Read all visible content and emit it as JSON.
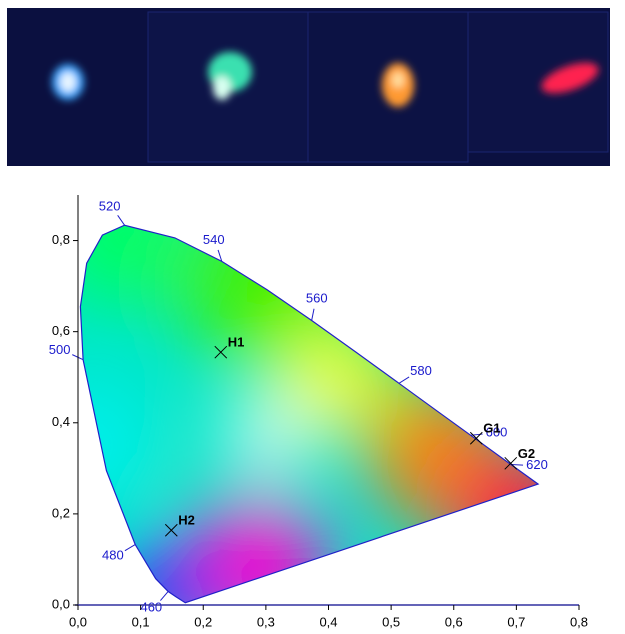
{
  "chart_data": {
    "type": "cie",
    "xlim": [
      0,
      0.8
    ],
    "ylim": [
      0,
      0.9
    ],
    "xticks": [
      {
        "value": 0,
        "label": "0,0"
      },
      {
        "value": 0.1,
        "label": "0,1"
      },
      {
        "value": 0.2,
        "label": "0,2"
      },
      {
        "value": 0.3,
        "label": "0,3"
      },
      {
        "value": 0.4,
        "label": "0,4"
      },
      {
        "value": 0.5,
        "label": "0,5"
      },
      {
        "value": 0.6,
        "label": "0,6"
      },
      {
        "value": 0.7,
        "label": "0,7"
      },
      {
        "value": 0.8,
        "label": "0,8"
      }
    ],
    "yticks": [
      {
        "value": 0,
        "label": "0,0"
      },
      {
        "value": 0.2,
        "label": "0,2"
      },
      {
        "value": 0.4,
        "label": "0,4"
      },
      {
        "value": 0.6,
        "label": "0,6"
      },
      {
        "value": 0.8,
        "label": "0,8"
      }
    ],
    "spectral_locus": {
      "wavelengths": [
        null,
        null,
        null,
        460,
        null,
        480,
        null,
        500,
        null,
        null,
        null,
        520,
        null,
        540,
        null,
        560,
        null,
        580,
        null,
        600,
        620,
        null,
        null
      ],
      "x": [
        0.1714,
        0.1644,
        0.1566,
        0.144,
        0.1241,
        0.0913,
        0.0454,
        0.0082,
        0.0039,
        0.0139,
        0.0389,
        0.0743,
        0.1547,
        0.2296,
        0.3016,
        0.3731,
        0.4441,
        0.5125,
        0.5752,
        0.627,
        0.6915,
        0.719,
        0.7347
      ],
      "y": [
        0.0051,
        0.0109,
        0.0177,
        0.0297,
        0.0578,
        0.1327,
        0.295,
        0.5384,
        0.6548,
        0.7502,
        0.812,
        0.8338,
        0.8059,
        0.7543,
        0.6923,
        0.6245,
        0.5547,
        0.4866,
        0.4242,
        0.3725,
        0.3083,
        0.2809,
        0.2653
      ]
    },
    "points": {
      "labels": [
        "H1",
        "H2",
        "G1",
        "G2"
      ],
      "x": [
        0.228,
        0.149,
        0.636,
        0.691
      ],
      "y": [
        0.555,
        0.164,
        0.366,
        0.311
      ]
    }
  }
}
